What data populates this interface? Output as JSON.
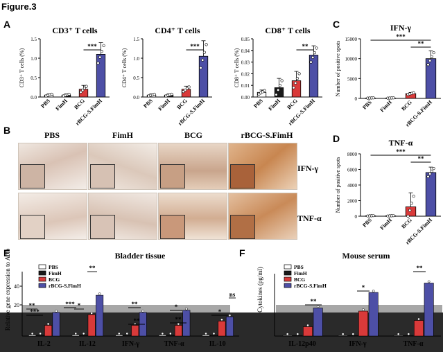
{
  "figure_title": "Figure.3",
  "panel_letters": [
    "A",
    "B",
    "C",
    "D",
    "E",
    "F"
  ],
  "colors": {
    "pbs": "#ffffff",
    "fimh": "#1a1a1a",
    "bcg": "#d93a3a",
    "rbcg": "#4d4fa6",
    "bar_edge": "#000000"
  },
  "micro": {
    "columns": [
      "PBS",
      "FimH",
      "BCG",
      "rBCG-S.FimH"
    ],
    "rows": [
      "IFN-γ",
      "TNF-α"
    ]
  },
  "chart_data": [
    {
      "id": "A1",
      "type": "bar",
      "title": "CD3⁺ T cells",
      "ylabel": "CD3⁺ T cells (%)",
      "categories": [
        "PBS",
        "FimH",
        "BCG",
        "rBCG-S.FimH"
      ],
      "values": [
        0.05,
        0.05,
        0.2,
        1.1
      ],
      "errors": [
        0.03,
        0.03,
        0.1,
        0.3
      ],
      "ylim": [
        0,
        1.5
      ],
      "yticks": [
        "0.0",
        "0.5",
        "1.0",
        "1.5"
      ],
      "significance": [
        "***"
      ]
    },
    {
      "id": "A2",
      "type": "bar",
      "title": "CD4⁺ T cells",
      "ylabel": "CD4⁺ T cells (%)",
      "categories": [
        "PBS",
        "FimH",
        "BCG",
        "rBCG-S.FimH"
      ],
      "values": [
        0.05,
        0.05,
        0.2,
        1.05
      ],
      "errors": [
        0.03,
        0.03,
        0.08,
        0.4
      ],
      "ylim": [
        0,
        1.5
      ],
      "yticks": [
        "0.0",
        "0.5",
        "1.0",
        "1.5"
      ],
      "significance": [
        "***"
      ]
    },
    {
      "id": "A3",
      "type": "bar",
      "title": "CD8⁺ T cells",
      "ylabel": "CD8⁺ T cells (%)",
      "categories": [
        "PBS",
        "FimH",
        "BCG",
        "rBCG-S.FimH"
      ],
      "values": [
        0.004,
        0.008,
        0.014,
        0.036
      ],
      "errors": [
        0.002,
        0.008,
        0.008,
        0.008
      ],
      "ylim": [
        0,
        0.05
      ],
      "yticks": [
        "0.00",
        "0.01",
        "0.02",
        "0.03",
        "0.04",
        "0.05"
      ],
      "significance": [
        "**"
      ]
    },
    {
      "id": "C",
      "type": "bar",
      "title": "IFN-γ",
      "ylabel": "Number of positive spots",
      "categories": [
        "PBS",
        "FimH",
        "BCG",
        "rBCG-S.FimH"
      ],
      "values": [
        100,
        100,
        1200,
        10000
      ],
      "errors": [
        50,
        50,
        300,
        2000
      ],
      "ylim": [
        0,
        15000
      ],
      "yticks": [
        "0",
        "5000",
        "10000",
        "15000"
      ],
      "significance": [
        "***",
        "**"
      ]
    },
    {
      "id": "D",
      "type": "bar",
      "title": "TNF-α",
      "ylabel": "Number of positive spots",
      "categories": [
        "PBS",
        "FimH",
        "BCG",
        "rBCG-S.FimH"
      ],
      "values": [
        50,
        50,
        1200,
        5600
      ],
      "errors": [
        30,
        30,
        1800,
        700
      ],
      "ylim": [
        0,
        8000
      ],
      "yticks": [
        "0",
        "2000",
        "4000",
        "6000",
        "8000"
      ],
      "significance": [
        "***",
        "**"
      ]
    },
    {
      "id": "E",
      "type": "bar",
      "title": "Bladder tissue",
      "ylabel": "Relative gene expression to Actb",
      "categories": [
        "IL-2",
        "IL-12",
        "IFN-γ",
        "TNF-α",
        "IL-10"
      ],
      "series": [
        {
          "name": "PBS",
          "values": [
            1,
            1,
            1,
            1,
            1
          ]
        },
        {
          "name": "FimH",
          "values": [
            1,
            1,
            1,
            1,
            1
          ]
        },
        {
          "name": "BCG",
          "values": [
            10,
            20,
            10,
            10,
            14
          ]
        },
        {
          "name": "rBCG-S.FimH",
          "values": [
            22,
            38,
            22,
            24,
            18
          ]
        }
      ],
      "yticks": [
        "20",
        "40"
      ],
      "significance": [
        "**",
        "***",
        "*",
        "***",
        "**",
        "**",
        "**",
        "*",
        "**",
        "*",
        "ns"
      ]
    },
    {
      "id": "F",
      "type": "bar",
      "title": "Mouse serum",
      "ylabel": "Cytokines (pg/ml)",
      "categories": [
        "IL-12p40",
        "IFN-γ",
        "TNF-α"
      ],
      "series": [
        {
          "name": "PBS",
          "values": [
            1,
            1,
            1
          ]
        },
        {
          "name": "FimH",
          "values": [
            1,
            1,
            1
          ]
        },
        {
          "name": "BCG",
          "values": [
            15,
            40,
            25
          ]
        },
        {
          "name": "rBCG-S.FimH",
          "values": [
            45,
            70,
            85
          ]
        }
      ],
      "significance": [
        "**",
        "*",
        "**"
      ]
    }
  ]
}
